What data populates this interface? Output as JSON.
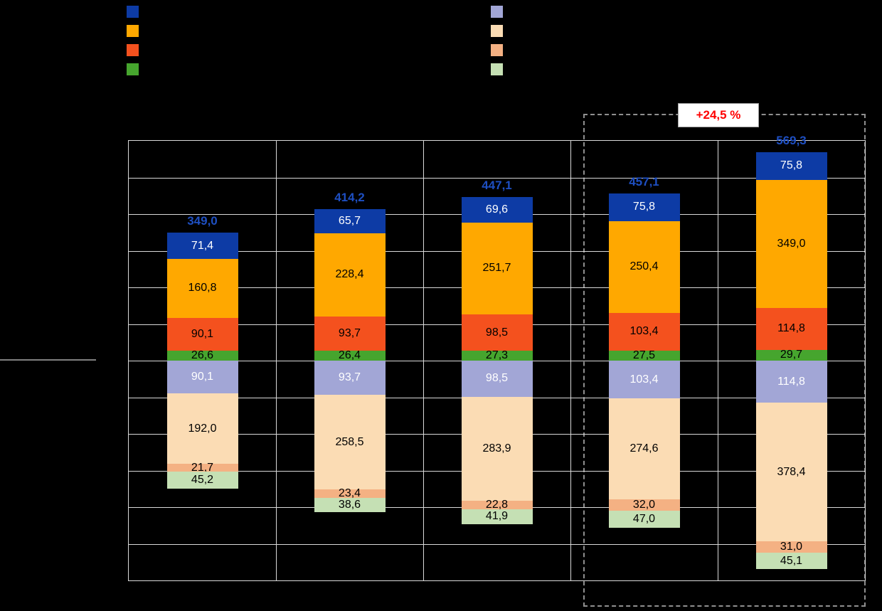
{
  "page": {
    "background": "#000000"
  },
  "annotation": {
    "delta_label": "+24,5 %",
    "text_color": "#ff0000",
    "box_background": "#ffffff"
  },
  "legend": {
    "left": [
      {
        "name": "dark-blue",
        "color": "#0d3ba5"
      },
      {
        "name": "orange",
        "color": "#ffa800"
      },
      {
        "name": "red-orange",
        "color": "#f4511e"
      },
      {
        "name": "green",
        "color": "#46a52e"
      }
    ],
    "right": [
      {
        "name": "light-purple",
        "color": "#a2a6d6"
      },
      {
        "name": "light-peach",
        "color": "#fbdcb4"
      },
      {
        "name": "light-salmon",
        "color": "#f4b183"
      },
      {
        "name": "light-green",
        "color": "#c5e0b4"
      }
    ]
  },
  "chart_data": {
    "type": "bar",
    "subtype": "diverging-stacked",
    "categories": [
      "",
      "",
      "",
      "",
      ""
    ],
    "ylim": [
      -600,
      600
    ],
    "grid_step": 100,
    "grid": true,
    "grid_color": "#d9d9d9",
    "background": "#000000",
    "totals": {
      "values": [
        349.0,
        414.2,
        447.1,
        457.1,
        569.3
      ],
      "labels": [
        "349,0",
        "414,2",
        "447,1",
        "457,1",
        "569,3"
      ],
      "color": "#1e4fc2"
    },
    "above_series": [
      {
        "name": "dark-blue",
        "color": "#0d3ba5",
        "label_color": "#ffffff",
        "values": [
          71.4,
          65.7,
          69.6,
          75.8,
          75.8
        ],
        "labels": [
          "71,4",
          "65,7",
          "69,6",
          "75,8",
          "75,8"
        ]
      },
      {
        "name": "orange",
        "color": "#ffa800",
        "label_color": "#000000",
        "values": [
          160.8,
          228.4,
          251.7,
          250.4,
          349.0
        ],
        "labels": [
          "160,8",
          "228,4",
          "251,7",
          "250,4",
          "349,0"
        ]
      },
      {
        "name": "red-orange",
        "color": "#f4511e",
        "label_color": "#000000",
        "values": [
          90.1,
          93.7,
          98.5,
          103.4,
          114.8
        ],
        "labels": [
          "90,1",
          "93,7",
          "98,5",
          "103,4",
          "114,8"
        ]
      },
      {
        "name": "green",
        "color": "#46a52e",
        "label_color": "#000000",
        "values": [
          26.6,
          26.4,
          27.3,
          27.5,
          29.7
        ],
        "labels": [
          "26,6",
          "26,4",
          "27,3",
          "27,5",
          "29,7"
        ]
      }
    ],
    "below_series": [
      {
        "name": "light-purple",
        "color": "#a2a6d6",
        "label_color": "#ffffff",
        "values": [
          90.1,
          93.7,
          98.5,
          103.4,
          114.8
        ],
        "labels": [
          "90,1",
          "93,7",
          "98,5",
          "103,4",
          "114,8"
        ]
      },
      {
        "name": "light-peach",
        "color": "#fbdcb4",
        "label_color": "#000000",
        "values": [
          192.0,
          258.5,
          283.9,
          274.6,
          378.4
        ],
        "labels": [
          "192,0",
          "258,5",
          "283,9",
          "274,6",
          "378,4"
        ]
      },
      {
        "name": "light-salmon",
        "color": "#f4b183",
        "label_color": "#000000",
        "values": [
          21.7,
          23.4,
          22.8,
          32.0,
          31.0
        ],
        "labels": [
          "21,7",
          "23,4",
          "22,8",
          "32,0",
          "31,0"
        ]
      },
      {
        "name": "light-green",
        "color": "#c5e0b4",
        "label_color": "#000000",
        "values": [
          45.2,
          38.6,
          41.9,
          47.0,
          45.1
        ],
        "labels": [
          "45,2",
          "38,6",
          "41,9",
          "47,0",
          "45,1"
        ]
      }
    ],
    "annotation_label": "+24,5 %",
    "highlighted_categories": [
      3,
      4
    ],
    "legend_position": "top"
  }
}
